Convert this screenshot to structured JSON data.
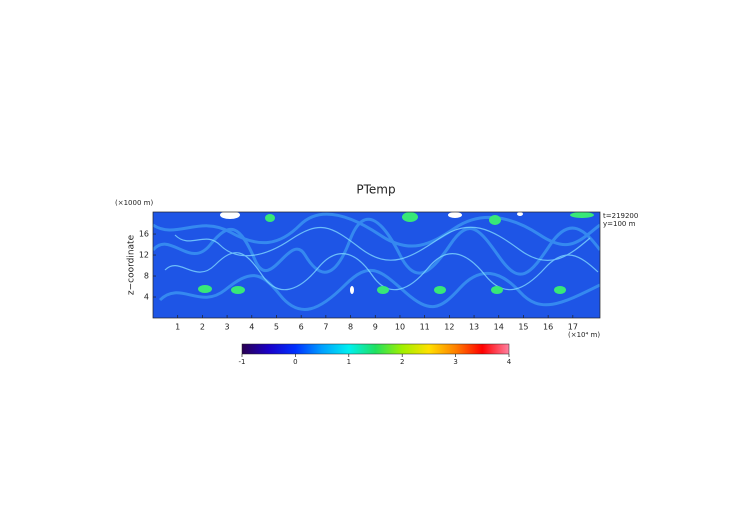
{
  "chart_data": {
    "type": "field",
    "title": "PTemp",
    "y_unit_label": "(×1000 m)",
    "ylabel": "z−coordinate",
    "x_unit_label": "(×10⁴ m)",
    "annotations": [
      "t=219200",
      "y=100 m"
    ],
    "xlim": [
      0,
      18.1
    ],
    "xticks": [
      1,
      2,
      3,
      4,
      5,
      6,
      7,
      8,
      9,
      10,
      11,
      12,
      13,
      14,
      15,
      16,
      17
    ],
    "ylim": [
      0,
      20.2
    ],
    "yticks": [
      4,
      8,
      12,
      16
    ],
    "colorbar": {
      "lim": [
        -1,
        4
      ],
      "ticks": [
        -1,
        0,
        1,
        2,
        3,
        4
      ],
      "colors": [
        "#2a0050",
        "#1a00c8",
        "#0030ff",
        "#00a0ff",
        "#00f0f0",
        "#20e060",
        "#a0f000",
        "#ffe000",
        "#ff8000",
        "#ff0000",
        "#ff80a0"
      ]
    }
  }
}
